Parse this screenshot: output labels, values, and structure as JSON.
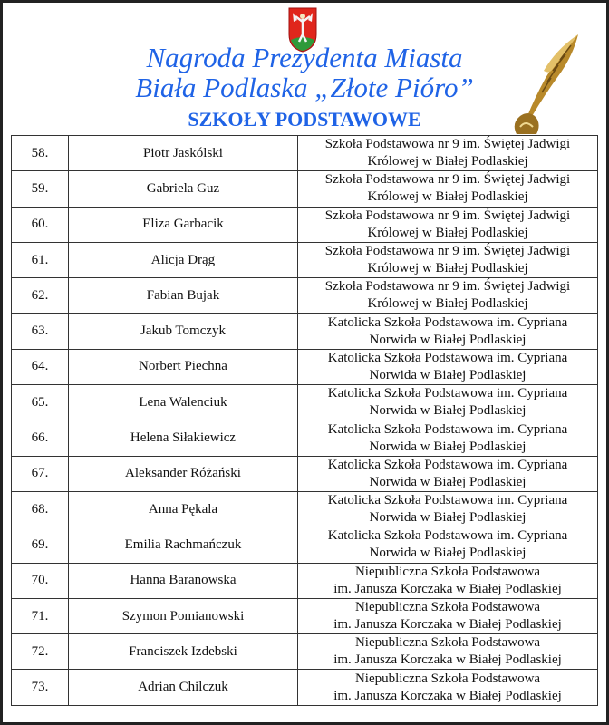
{
  "header": {
    "title_line1": "Nagroda Prezydenta Miasta",
    "title_line2": "Biała Podlaska „Złote Pióro”",
    "subtitle": "SZKOŁY PODSTAWOWE",
    "crest_icon": "city-coat-of-arms",
    "quill_icon": "golden-quill-icon"
  },
  "rows": [
    {
      "no": "58.",
      "name": "Piotr Jaskólski",
      "school1": "Szkoła Podstawowa nr 9 im. Świętej Jadwigi",
      "school2": "Królowej w Białej Podlaskiej"
    },
    {
      "no": "59.",
      "name": "Gabriela Guz",
      "school1": "Szkoła Podstawowa nr 9 im. Świętej Jadwigi",
      "school2": "Królowej w Białej Podlaskiej"
    },
    {
      "no": "60.",
      "name": "Eliza Garbacik",
      "school1": "Szkoła Podstawowa nr 9 im. Świętej Jadwigi",
      "school2": "Królowej w Białej Podlaskiej"
    },
    {
      "no": "61.",
      "name": "Alicja Drąg",
      "school1": "Szkoła Podstawowa nr 9 im. Świętej Jadwigi",
      "school2": "Królowej w Białej Podlaskiej"
    },
    {
      "no": "62.",
      "name": "Fabian Bujak",
      "school1": "Szkoła Podstawowa nr 9 im. Świętej Jadwigi",
      "school2": "Królowej w Białej Podlaskiej"
    },
    {
      "no": "63.",
      "name": "Jakub Tomczyk",
      "school1": "Katolicka Szkoła Podstawowa im. Cypriana",
      "school2": "Norwida w Białej Podlaskiej"
    },
    {
      "no": "64.",
      "name": "Norbert Piechna",
      "school1": "Katolicka Szkoła Podstawowa im. Cypriana",
      "school2": "Norwida w Białej Podlaskiej"
    },
    {
      "no": "65.",
      "name": "Lena Walenciuk",
      "school1": "Katolicka Szkoła Podstawowa im. Cypriana",
      "school2": "Norwida w Białej Podlaskiej"
    },
    {
      "no": "66.",
      "name": "Helena Siłakiewicz",
      "school1": "Katolicka Szkoła Podstawowa im. Cypriana",
      "school2": "Norwida w Białej Podlaskiej"
    },
    {
      "no": "67.",
      "name": "Aleksander Różański",
      "school1": "Katolicka Szkoła Podstawowa im. Cypriana",
      "school2": "Norwida w Białej Podlaskiej"
    },
    {
      "no": "68.",
      "name": "Anna Pękala",
      "school1": "Katolicka Szkoła Podstawowa im. Cypriana",
      "school2": "Norwida w Białej Podlaskiej"
    },
    {
      "no": "69.",
      "name": "Emilia Rachmańczuk",
      "school1": "Katolicka Szkoła Podstawowa im. Cypriana",
      "school2": "Norwida w Białej Podlaskiej"
    },
    {
      "no": "70.",
      "name": "Hanna Baranowska",
      "school1": "Niepubliczna Szkoła Podstawowa",
      "school2": "im. Janusza Korczaka w Białej Podlaskiej"
    },
    {
      "no": "71.",
      "name": "Szymon Pomianowski",
      "school1": "Niepubliczna Szkoła Podstawowa",
      "school2": "im. Janusza Korczaka w Białej Podlaskiej"
    },
    {
      "no": "72.",
      "name": "Franciszek Izdebski",
      "school1": "Niepubliczna Szkoła Podstawowa",
      "school2": "im. Janusza Korczaka w Białej Podlaskiej"
    },
    {
      "no": "73.",
      "name": "Adrian Chilczuk",
      "school1": "Niepubliczna Szkoła Podstawowa",
      "school2": "im. Janusza Korczaka w Białej Podlaskiej"
    }
  ]
}
